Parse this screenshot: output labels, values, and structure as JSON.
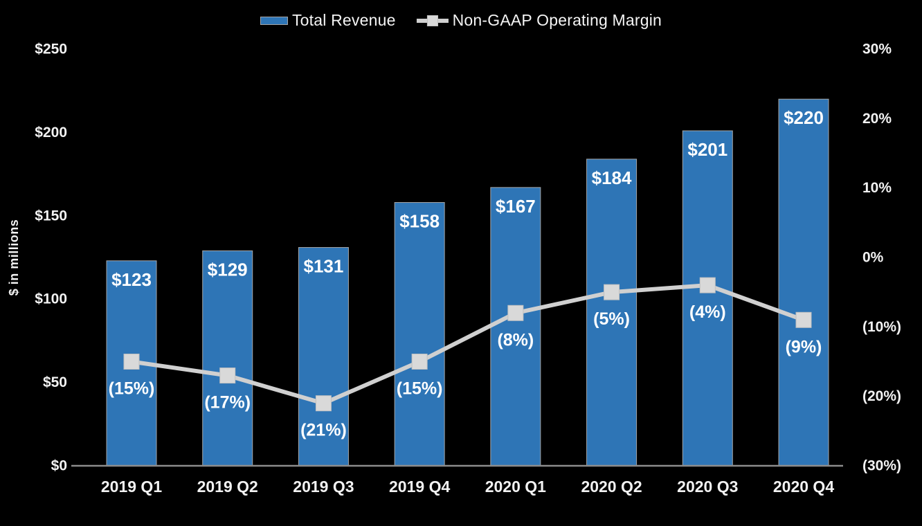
{
  "legend": {
    "revenue_label": "Total Revenue",
    "margin_label": "Non-GAAP Operating Margin"
  },
  "y_axis_title": "$ in millions",
  "colors": {
    "background": "#000000",
    "bar_fill": "#2E75B6",
    "bar_border": "#A6A6A6",
    "line": "#D0D0D0",
    "marker_fill": "#D9D9D9",
    "marker_border": "#C0C0C0",
    "label_text": "#FFFFFF",
    "tick_text": "#F2F2F2",
    "axis_line": "#8C8C8C"
  },
  "chart_data": {
    "type": "combo-bar-line",
    "title": "",
    "categories": [
      "2019 Q1",
      "2019 Q2",
      "2019 Q3",
      "2019 Q4",
      "2020 Q1",
      "2020 Q2",
      "2020 Q3",
      "2020 Q4"
    ],
    "series": [
      {
        "name": "Total Revenue",
        "type": "bar",
        "axis": "left",
        "values": [
          123,
          129,
          131,
          158,
          167,
          184,
          201,
          220
        ],
        "labels": [
          "$123",
          "$129",
          "$131",
          "$158",
          "$167",
          "$184",
          "$201",
          "$220"
        ]
      },
      {
        "name": "Non-GAAP Operating Margin",
        "type": "line",
        "axis": "right",
        "values": [
          -15,
          -17,
          -21,
          -15,
          -8,
          -5,
          -4,
          -9
        ],
        "labels": [
          "(15%)",
          "(17%)",
          "(21%)",
          "(15%)",
          "(8%)",
          "(5%)",
          "(4%)",
          "(9%)"
        ]
      }
    ],
    "left_axis": {
      "title": "$ in millions",
      "range": [
        0,
        250
      ],
      "tick_values": [
        250,
        200,
        150,
        100,
        50,
        0
      ],
      "tick_labels": [
        "$250",
        "$200",
        "$150",
        "$100",
        "$50",
        "$0"
      ]
    },
    "right_axis": {
      "range": [
        -30,
        30
      ],
      "tick_values": [
        30,
        20,
        10,
        0,
        -10,
        -20,
        -30
      ],
      "tick_labels": [
        "30%",
        "20%",
        "10%",
        "0%",
        "(10%)",
        "(20%)",
        "(30%)"
      ]
    },
    "legend_position": "top",
    "grid": false
  }
}
